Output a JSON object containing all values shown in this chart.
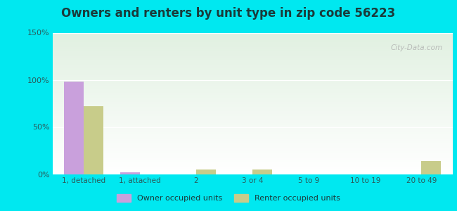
{
  "title": "Owners and renters by unit type in zip code 56223",
  "categories": [
    "1, detached",
    "1, attached",
    "2",
    "3 or 4",
    "5 to 9",
    "10 to 19",
    "20 to 49"
  ],
  "owner_values": [
    98,
    2,
    0,
    0,
    0,
    0,
    0
  ],
  "renter_values": [
    72,
    0,
    5,
    5,
    0,
    0,
    14
  ],
  "owner_color": "#c9a0dc",
  "renter_color": "#c8cc8a",
  "ylim": [
    0,
    150
  ],
  "yticks": [
    0,
    50,
    100,
    150
  ],
  "ytick_labels": [
    "0%",
    "50%",
    "100%",
    "150%"
  ],
  "bar_width": 0.35,
  "outer_bg": "#00e8f0",
  "title_fontsize": 12,
  "watermark": "City-Data.com"
}
